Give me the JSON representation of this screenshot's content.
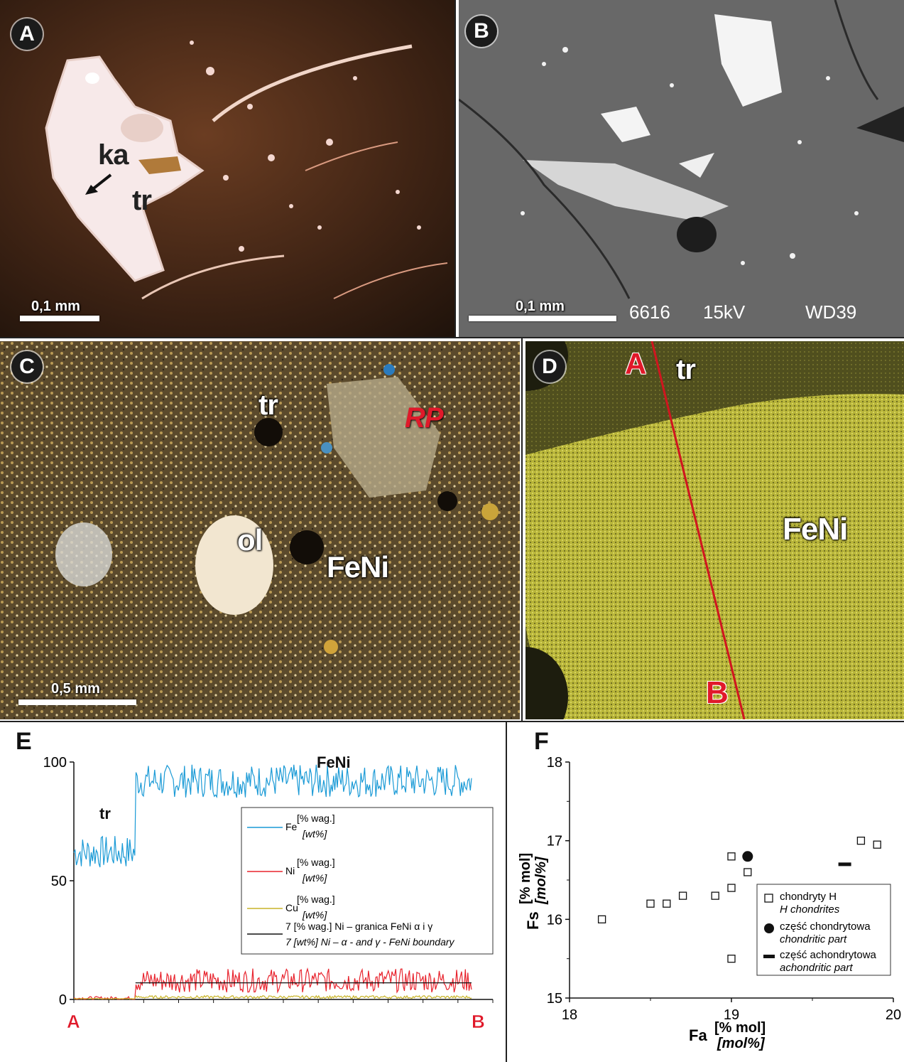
{
  "panels": {
    "a": {
      "letter": "A",
      "label_ka": "ka",
      "label_tr": "tr",
      "scale": "0,1 mm"
    },
    "b": {
      "letter": "B",
      "scale": "0,1 mm",
      "sem": [
        "6616",
        "15kV",
        "WD39"
      ]
    },
    "c": {
      "letter": "C",
      "label_tr": "tr",
      "label_rp": "RP",
      "label_ol": "ol",
      "label_feni": "FeNi",
      "scale": "0,5 mm"
    },
    "d": {
      "letter": "D",
      "label_a": "A",
      "label_b": "B",
      "label_tr": "tr",
      "label_feni": "FeNi"
    }
  },
  "chart_e": {
    "letter": "E",
    "region_labels": {
      "tr": "tr",
      "feni": "FeNi"
    },
    "endpoints": {
      "start": "A",
      "end": "B"
    },
    "y_ticks": [
      "0",
      "50",
      "100"
    ],
    "legend": [
      {
        "name": "Fe",
        "unit": "[% wag.]",
        "unit_en": "[wt%]",
        "color": "#1a9ad6"
      },
      {
        "name": "Ni",
        "unit": "[% wag.]",
        "unit_en": "[wt%]",
        "color": "#e8232d"
      },
      {
        "name": "Cu",
        "unit": "[% wag.]",
        "unit_en": "[wt%]",
        "color": "#c8b428"
      },
      {
        "name": "7 [% wag.] Ni – granica FeNi α i γ",
        "unit_en": "7 [wt%] Ni – α - and γ - FeNi boundary",
        "color": "#111111"
      }
    ]
  },
  "chart_data": [
    {
      "type": "line",
      "title": "",
      "xlabel": "",
      "ylabel": "",
      "ylim": [
        0,
        100
      ],
      "x_range_labels": [
        "A",
        "B"
      ],
      "segments": [
        {
          "region": "tr",
          "x_fraction": [
            0,
            0.155
          ]
        },
        {
          "region": "FeNi",
          "x_fraction": [
            0.155,
            1.0
          ]
        }
      ],
      "series": [
        {
          "name": "Fe [% wag.] [wt%]",
          "mean_tr": 62,
          "mean_FeNi": 92,
          "noise": 7
        },
        {
          "name": "Ni [% wag.] [wt%]",
          "mean_tr": 0.5,
          "mean_FeNi": 8,
          "noise": 5
        },
        {
          "name": "Cu [% wag.] [wt%]",
          "mean_tr": 0.3,
          "mean_FeNi": 1,
          "noise": 0.6
        },
        {
          "name": "7 [% wag.] Ni – granica FeNi α i γ",
          "value": 7
        }
      ]
    },
    {
      "type": "scatter",
      "title": "",
      "xlabel": "Fa [% mol] [mol%]",
      "ylabel": "Fs [% mol] [mol%]",
      "xlim": [
        18,
        20
      ],
      "ylim": [
        15,
        18
      ],
      "x_ticks": [
        "18",
        "19",
        "20"
      ],
      "y_ticks": [
        "15",
        "16",
        "17",
        "18"
      ],
      "series": [
        {
          "name": "chondryty H / H chondrites",
          "marker": "open-square",
          "points": [
            [
              18.2,
              16.0
            ],
            [
              18.5,
              16.2
            ],
            [
              18.6,
              16.2
            ],
            [
              18.7,
              16.3
            ],
            [
              18.9,
              16.3
            ],
            [
              19.0,
              16.4
            ],
            [
              19.0,
              16.8
            ],
            [
              19.1,
              16.6
            ],
            [
              19.0,
              15.5
            ],
            [
              19.8,
              17.0
            ],
            [
              19.9,
              16.95
            ]
          ]
        },
        {
          "name": "część chondrytowa / chondritic part",
          "marker": "filled-circle",
          "points": [
            [
              19.1,
              16.8
            ]
          ]
        },
        {
          "name": "część achondrytowa / achondritic part",
          "marker": "bar",
          "points": [
            [
              19.7,
              16.7
            ]
          ]
        }
      ]
    }
  ],
  "chart_f": {
    "letter": "F",
    "xlabel_main": "Fa",
    "xlabel_unit": "[% mol]",
    "xlabel_unit_en": "[mol%]",
    "ylabel_main": "Fs",
    "ylabel_unit": "[% mol]",
    "ylabel_unit_en": "[mol%]",
    "legend": [
      {
        "label": "chondryty H",
        "label_en": "H chondrites"
      },
      {
        "label": "część chondrytowa",
        "label_en": "chondritic part"
      },
      {
        "label": "część achondrytowa",
        "label_en": "achondritic part"
      }
    ]
  }
}
